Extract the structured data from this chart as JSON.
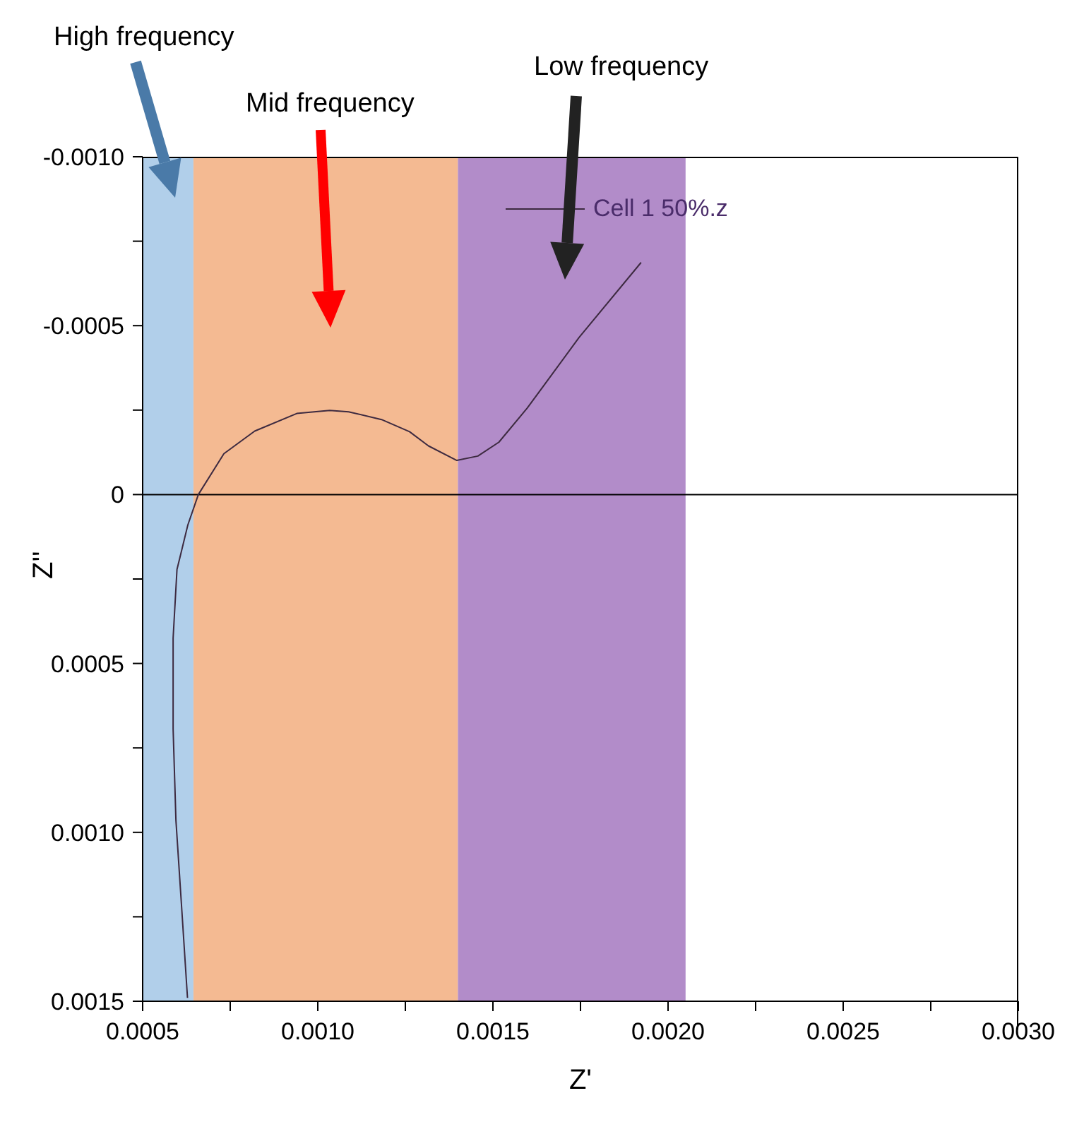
{
  "chart_data": {
    "type": "line",
    "xlabel": "Z'",
    "ylabel": "Z''",
    "xlim": [
      0.0005,
      0.003
    ],
    "xticks": [
      {
        "value": 0.0005,
        "label": "0.0005"
      },
      {
        "value": 0.00075,
        "label": null
      },
      {
        "value": 0.001,
        "label": "0.0010"
      },
      {
        "value": 0.00125,
        "label": null
      },
      {
        "value": 0.0015,
        "label": "0.0015"
      },
      {
        "value": 0.00175,
        "label": null
      },
      {
        "value": 0.002,
        "label": "0.0020"
      },
      {
        "value": 0.00225,
        "label": null
      },
      {
        "value": 0.0025,
        "label": "0.0025"
      },
      {
        "value": 0.00275,
        "label": null
      },
      {
        "value": 0.003,
        "label": "0.0030"
      }
    ],
    "ylim": [
      0.0015,
      -0.001
    ],
    "yticks": [
      {
        "value": -0.001,
        "label": "-0.0010"
      },
      {
        "value": -0.00075,
        "label": null
      },
      {
        "value": -0.0005,
        "label": "-0.0005"
      },
      {
        "value": -0.00025,
        "label": null
      },
      0,
      {
        "value": 0.00025,
        "label": null
      },
      {
        "value": 0.0005,
        "label": "0.0005"
      },
      {
        "value": 0.00075,
        "label": null
      },
      {
        "value": 0.001,
        "label": "0.0010"
      },
      {
        "value": 0.00125,
        "label": null
      },
      {
        "value": 0.0015,
        "label": "0.0015"
      }
    ],
    "series": [
      {
        "name": "Cell 1 50%.z",
        "color": "#3d2a40",
        "x": [
          0.000628,
          0.000612,
          0.000595,
          0.000587,
          0.000587,
          0.000598,
          0.000629,
          0.000659,
          0.000732,
          0.00082,
          0.00094,
          0.001034,
          0.001088,
          0.001182,
          0.001262,
          0.001316,
          0.001397,
          0.001457,
          0.001517,
          0.001598,
          0.001746,
          0.001923
        ],
        "values": [
          0.00149,
          0.001233,
          0.000964,
          0.000694,
          0.000425,
          0.000222,
          9e-05,
          0,
          -0.000121,
          -0.000188,
          -0.00024,
          -0.000249,
          -0.000245,
          -0.000222,
          -0.000186,
          -0.000144,
          -0.000101,
          -0.000114,
          -0.000155,
          -0.000256,
          -0.000465,
          -0.000687
        ]
      }
    ],
    "bands": [
      {
        "axis": "x",
        "from": 0.0005,
        "to": 0.000645,
        "color": "#b1cfea"
      },
      {
        "axis": "x",
        "from": 0.000645,
        "to": 0.0014,
        "color": "#f4ba92"
      },
      {
        "axis": "x",
        "from": 0.0014,
        "to": 0.00205,
        "color": "#b28cc9"
      }
    ],
    "ref_lines": [
      {
        "axis": "y",
        "value": 0,
        "color": "#000000"
      }
    ],
    "annotations": [
      "High frequency",
      "Mid frequency",
      "Low frequency"
    ],
    "legend": "top",
    "grid": false,
    "marker": "none",
    "line_style": "solid"
  }
}
